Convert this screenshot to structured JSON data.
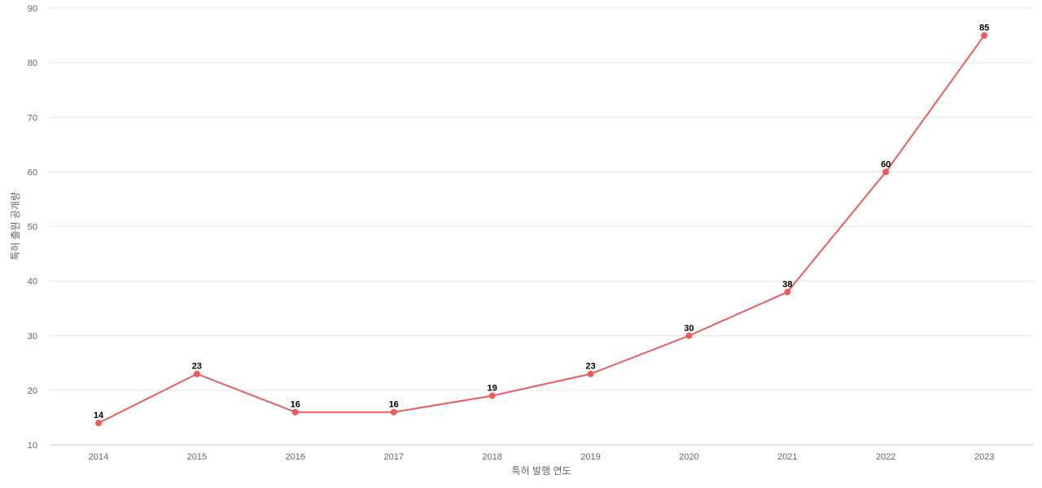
{
  "chart_data": {
    "type": "line",
    "title": "",
    "xlabel": "특허 발행 연도",
    "ylabel": "특허 출원 공개량",
    "categories": [
      "2014",
      "2015",
      "2016",
      "2017",
      "2018",
      "2019",
      "2020",
      "2021",
      "2022",
      "2023"
    ],
    "series": [
      {
        "values": [
          14,
          23,
          16,
          16,
          19,
          23,
          30,
          38,
          60,
          85
        ],
        "color": "#ef5b5b"
      }
    ],
    "ylim": [
      10,
      90
    ],
    "yticks": [
      10,
      20,
      30,
      40,
      50,
      60,
      70,
      80,
      90
    ],
    "grid": true,
    "legend": "none",
    "data_labels": true
  }
}
